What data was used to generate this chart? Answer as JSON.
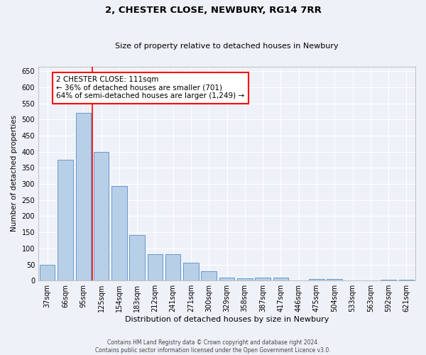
{
  "title1": "2, CHESTER CLOSE, NEWBURY, RG14 7RR",
  "title2": "Size of property relative to detached houses in Newbury",
  "xlabel": "Distribution of detached houses by size in Newbury",
  "ylabel": "Number of detached properties",
  "categories": [
    "37sqm",
    "66sqm",
    "95sqm",
    "125sqm",
    "154sqm",
    "183sqm",
    "212sqm",
    "241sqm",
    "271sqm",
    "300sqm",
    "329sqm",
    "358sqm",
    "387sqm",
    "417sqm",
    "446sqm",
    "475sqm",
    "504sqm",
    "533sqm",
    "563sqm",
    "592sqm",
    "621sqm"
  ],
  "values": [
    50,
    375,
    520,
    400,
    293,
    142,
    82,
    82,
    55,
    30,
    10,
    7,
    10,
    10,
    0,
    5,
    5,
    0,
    0,
    3,
    3
  ],
  "bar_color": "#b8cfe8",
  "bar_edge_color": "#6699cc",
  "red_line_x": 2.5,
  "annotation_line1": "2 CHESTER CLOSE: 111sqm",
  "annotation_line2": "← 36% of detached houses are smaller (701)",
  "annotation_line3": "64% of semi-detached houses are larger (1,249) →",
  "annotation_box_color": "white",
  "annotation_box_edge_color": "red",
  "ylim": [
    0,
    665
  ],
  "yticks": [
    0,
    50,
    100,
    150,
    200,
    250,
    300,
    350,
    400,
    450,
    500,
    550,
    600,
    650
  ],
  "footer1": "Contains HM Land Registry data © Crown copyright and database right 2024.",
  "footer2": "Contains public sector information licensed under the Open Government Licence v3.0.",
  "background_color": "#eef2f8",
  "grid_color": "white",
  "title1_fontsize": 9.5,
  "title2_fontsize": 8,
  "xlabel_fontsize": 8,
  "ylabel_fontsize": 7.5,
  "tick_fontsize": 7,
  "ann_fontsize": 7.5,
  "footer_fontsize": 5.5
}
